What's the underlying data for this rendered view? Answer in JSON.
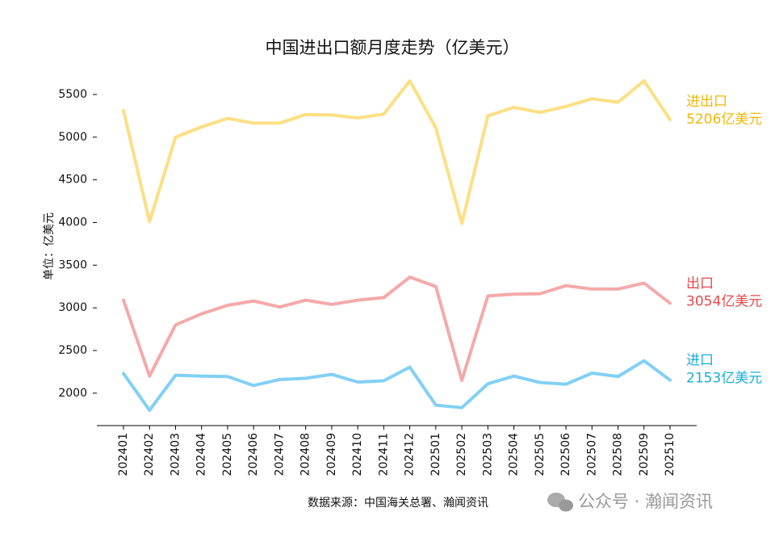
{
  "chart_data": {
    "type": "line",
    "title": "中国进出口额月度走势（亿美元）",
    "y_label": "单位：亿美元",
    "source": "数据来源：中国海关总署、瀚闻资讯",
    "watermark": "公众号 · 瀚闻资讯",
    "categories": [
      "202401",
      "202402",
      "202403",
      "202404",
      "202405",
      "202406",
      "202407",
      "202408",
      "202409",
      "202410",
      "202411",
      "202412",
      "202501",
      "202502",
      "202503",
      "202504",
      "202505",
      "202506",
      "202507",
      "202508",
      "202509",
      "202510"
    ],
    "series": [
      {
        "name": "进出口",
        "color": "#fddf84",
        "label_color": "#f2b705",
        "values": [
          5310,
          4010,
          5000,
          5120,
          5220,
          5165,
          5165,
          5265,
          5260,
          5225,
          5270,
          5660,
          5110,
          3990,
          5250,
          5350,
          5290,
          5360,
          5450,
          5410,
          5660,
          5206
        ],
        "value_labels": [
          null,
          null,
          null,
          null,
          null,
          null,
          null,
          null,
          null,
          null,
          null,
          null,
          null,
          null,
          null,
          null,
          null,
          null,
          null,
          null,
          null,
          "5206亿美元"
        ]
      },
      {
        "name": "出口",
        "color": "#f5a9a9",
        "label_color": "#e8474b",
        "values": [
          3090,
          2200,
          2800,
          2930,
          3030,
          3080,
          3010,
          3090,
          3040,
          3090,
          3120,
          3360,
          3250,
          2150,
          3140,
          3160,
          3165,
          3260,
          3220,
          3220,
          3290,
          3054
        ],
        "value_labels": [
          null,
          null,
          null,
          null,
          null,
          null,
          null,
          null,
          null,
          null,
          null,
          null,
          null,
          null,
          null,
          null,
          null,
          null,
          null,
          null,
          null,
          "3054亿美元"
        ]
      },
      {
        "name": "进口",
        "color": "#82d0f4",
        "label_color": "#16aedb",
        "values": [
          2230,
          1800,
          2210,
          2200,
          2195,
          2090,
          2160,
          2175,
          2220,
          2130,
          2145,
          2305,
          1860,
          1830,
          2110,
          2200,
          2125,
          2105,
          2235,
          2195,
          2380,
          2153
        ],
        "value_labels": [
          null,
          null,
          null,
          null,
          null,
          null,
          null,
          null,
          null,
          null,
          null,
          null,
          null,
          null,
          null,
          null,
          null,
          null,
          null,
          null,
          null,
          "2153亿美元"
        ]
      }
    ],
    "ylim": [
      1620,
      5750
    ],
    "yticks": [
      2000,
      2500,
      3000,
      3500,
      4000,
      4500,
      5000,
      5500
    ],
    "grid": false
  }
}
